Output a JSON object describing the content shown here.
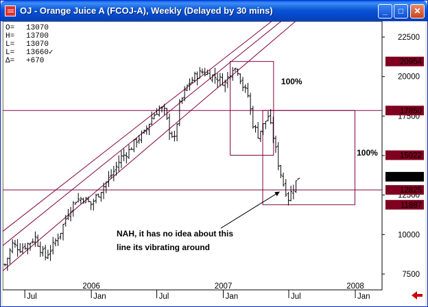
{
  "window": {
    "title": "OJ - Orange Juice A (FCOJ-A), Weekly (Delayed by 30 mins)",
    "min_glyph": "_",
    "max_glyph": "□",
    "close_glyph": "✕"
  },
  "colors": {
    "frame_blue": "#0a55d6",
    "channel": "#800040",
    "hline": "#800040",
    "bars": "#000000",
    "label_red": "#800020",
    "label_black": "#000000",
    "back_arrow": "#cc0000"
  },
  "quote_panel": [
    {
      "k": "O=",
      "v": "13070"
    },
    {
      "k": "H=",
      "v": "13700"
    },
    {
      "k": "L=",
      "v": "13070"
    },
    {
      "k": "L=",
      "v": "13660✓"
    },
    {
      "k": "Δ=",
      "v": "+670"
    }
  ],
  "chart_data": {
    "type": "ohlc",
    "symbol": "OJ",
    "interval": "Weekly",
    "ylim": [
      6500,
      23500
    ],
    "y_ticks": [
      7500,
      10000,
      12500,
      15000,
      17500,
      20000,
      22500
    ],
    "x_range": [
      "2005-05-01",
      "2008-03-15"
    ],
    "x_month_ticks": [
      {
        "label": "Jul",
        "date": "2005-07-01"
      },
      {
        "label": "Jan",
        "date": "2006-01-01"
      },
      {
        "label": "Jul",
        "date": "2006-07-01"
      },
      {
        "label": "Jan",
        "date": "2007-01-01"
      },
      {
        "label": "Jul",
        "date": "2007-07-01"
      },
      {
        "label": "Jan",
        "date": "2008-01-01"
      }
    ],
    "x_year_ticks": [
      {
        "label": "2006",
        "date": "2006-01-01"
      },
      {
        "label": "2007",
        "date": "2007-01-01"
      },
      {
        "label": "2008",
        "date": "2008-01-01"
      }
    ],
    "price_path": [
      [
        "2005-05-07",
        8100
      ],
      [
        "2005-05-28",
        9400
      ],
      [
        "2005-06-18",
        9100
      ],
      [
        "2005-07-09",
        9400
      ],
      [
        "2005-07-30",
        9800
      ],
      [
        "2005-08-13",
        9100
      ],
      [
        "2005-08-27",
        8600
      ],
      [
        "2005-09-17",
        9300
      ],
      [
        "2005-10-08",
        10200
      ],
      [
        "2005-10-29",
        11400
      ],
      [
        "2005-11-19",
        12200
      ],
      [
        "2005-12-10",
        12300
      ],
      [
        "2005-12-31",
        11900
      ],
      [
        "2006-01-21",
        12600
      ],
      [
        "2006-02-11",
        13300
      ],
      [
        "2006-03-04",
        14000
      ],
      [
        "2006-03-25",
        14900
      ],
      [
        "2006-04-15",
        15300
      ],
      [
        "2006-05-06",
        16000
      ],
      [
        "2006-05-27",
        16400
      ],
      [
        "2006-06-17",
        17400
      ],
      [
        "2006-07-08",
        18000
      ],
      [
        "2006-07-22",
        17800
      ],
      [
        "2006-08-05",
        16600
      ],
      [
        "2006-08-19",
        16000
      ],
      [
        "2006-09-02",
        18200
      ],
      [
        "2006-09-23",
        19400
      ],
      [
        "2006-10-14",
        20000
      ],
      [
        "2006-11-04",
        20300
      ],
      [
        "2006-11-25",
        20100
      ],
      [
        "2006-12-16",
        19900
      ],
      [
        "2007-01-06",
        19600
      ],
      [
        "2007-01-27",
        20600
      ],
      [
        "2007-02-10",
        20400
      ],
      [
        "2007-02-24",
        19400
      ],
      [
        "2007-03-10",
        18800
      ],
      [
        "2007-03-24",
        17000
      ],
      [
        "2007-04-07",
        16300
      ],
      [
        "2007-04-21",
        16900
      ],
      [
        "2007-05-05",
        17500
      ],
      [
        "2007-05-19",
        16200
      ],
      [
        "2007-06-02",
        14500
      ],
      [
        "2007-06-16",
        13200
      ],
      [
        "2007-06-30",
        12300
      ],
      [
        "2007-07-14",
        13000
      ],
      [
        "2007-07-28",
        13660
      ]
    ],
    "price_labels": [
      {
        "value": 20954,
        "text": "20954",
        "style": "red"
      },
      {
        "value": 17850,
        "text": "17850",
        "style": "red"
      },
      {
        "value": 15022,
        "text": "15022",
        "style": "red"
      },
      {
        "value": 13660,
        "text": "13660",
        "style": "black"
      },
      {
        "value": 12825,
        "text": "12825",
        "style": "red"
      },
      {
        "value": 11887,
        "text": "11887",
        "style": "red"
      }
    ],
    "horizontal_lines": [
      17850,
      12825
    ],
    "channel_lines": [
      {
        "from": [
          "2005-05-01",
          10200
        ],
        "to": [
          "2007-05-15",
          23500
        ]
      },
      {
        "from": [
          "2005-05-01",
          9300
        ],
        "to": [
          "2007-06-10",
          23500
        ]
      },
      {
        "from": [
          "2005-05-01",
          7700
        ],
        "to": [
          "2007-07-20",
          23500
        ]
      }
    ],
    "measure_boxes": [
      {
        "x1": "2007-01-20",
        "x2": "2007-05-20",
        "high": 20954,
        "low": 15022,
        "label": "100%",
        "label_at": [
          "2007-06-10",
          19500
        ]
      },
      {
        "x1": "2007-04-20",
        "x2": "2007-12-31",
        "high": 17850,
        "low": 11887,
        "label": "100%",
        "label_at": [
          "2008-01-05",
          15000
        ]
      }
    ],
    "annotation": {
      "lines": [
        "NAH, it has no idea about this",
        "line its vibrating around"
      ],
      "at": [
        "2006-04-01",
        9700
      ],
      "arrow_from": [
        "2006-12-25",
        10400
      ],
      "arrow_to": [
        "2007-06-05",
        12700
      ]
    }
  }
}
